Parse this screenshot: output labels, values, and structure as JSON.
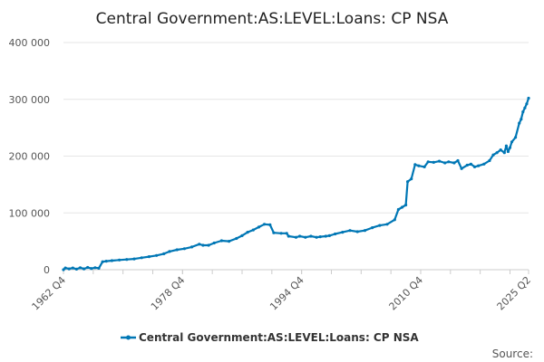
{
  "chart_data": {
    "type": "line",
    "title": "Central Government:AS:LEVEL:Loans: CP NSA",
    "series": [
      {
        "name": "Central Government:AS:LEVEL:Loans: CP NSA",
        "color": "#0077b5",
        "points": [
          [
            "1962 Q4",
            0
          ],
          [
            "1963 Q1",
            3000
          ],
          [
            "1963 Q3",
            1500
          ],
          [
            "1964 Q1",
            3000
          ],
          [
            "1964 Q3",
            1000
          ],
          [
            "1965 Q1",
            3500
          ],
          [
            "1965 Q3",
            1500
          ],
          [
            "1966 Q1",
            4000
          ],
          [
            "1966 Q3",
            2000
          ],
          [
            "1967 Q1",
            3500
          ],
          [
            "1967 Q3",
            2500
          ],
          [
            "1968 Q1",
            14000
          ],
          [
            "1968 Q3",
            15000
          ],
          [
            "1969 Q2",
            16000
          ],
          [
            "1970 Q2",
            17000
          ],
          [
            "1971 Q2",
            18000
          ],
          [
            "1972 Q2",
            19000
          ],
          [
            "1973 Q2",
            21000
          ],
          [
            "1974 Q2",
            23000
          ],
          [
            "1975 Q2",
            25000
          ],
          [
            "1976 Q2",
            28000
          ],
          [
            "1977 Q1",
            32000
          ],
          [
            "1978 Q1",
            35000
          ],
          [
            "1979 Q1",
            37000
          ],
          [
            "1980 Q1",
            40000
          ],
          [
            "1981 Q1",
            45000
          ],
          [
            "1981 Q3",
            43000
          ],
          [
            "1982 Q2",
            43000
          ],
          [
            "1983 Q1",
            47000
          ],
          [
            "1984 Q1",
            51000
          ],
          [
            "1985 Q1",
            50000
          ],
          [
            "1986 Q1",
            55000
          ],
          [
            "1986 Q4",
            60000
          ],
          [
            "1987 Q3",
            66000
          ],
          [
            "1988 Q2",
            70000
          ],
          [
            "1989 Q1",
            75000
          ],
          [
            "1989 Q4",
            80000
          ],
          [
            "1990 Q3",
            79000
          ],
          [
            "1991 Q1",
            65000
          ],
          [
            "1992 Q1",
            64000
          ],
          [
            "1992 Q4",
            64000
          ],
          [
            "1993 Q1",
            59000
          ],
          [
            "1994 Q1",
            57000
          ],
          [
            "1994 Q3",
            59000
          ],
          [
            "1995 Q2",
            57000
          ],
          [
            "1996 Q1",
            59000
          ],
          [
            "1996 Q4",
            57000
          ],
          [
            "1997 Q2",
            58000
          ],
          [
            "1998 Q1",
            59000
          ],
          [
            "1998 Q3",
            60000
          ],
          [
            "1999 Q2",
            63000
          ],
          [
            "2000 Q2",
            66000
          ],
          [
            "2001 Q2",
            69000
          ],
          [
            "2002 Q2",
            67000
          ],
          [
            "2003 Q2",
            69000
          ],
          [
            "2004 Q2",
            74000
          ],
          [
            "2005 Q2",
            78000
          ],
          [
            "2006 Q2",
            80000
          ],
          [
            "2007 Q2",
            88000
          ],
          [
            "2007 Q4",
            106000
          ],
          [
            "2008 Q2",
            110000
          ],
          [
            "2008 Q4",
            114000
          ],
          [
            "2009 Q1",
            155000
          ],
          [
            "2009 Q3",
            160000
          ],
          [
            "2010 Q1",
            185000
          ],
          [
            "2010 Q3",
            183000
          ],
          [
            "2011 Q2",
            181000
          ],
          [
            "2011 Q4",
            190000
          ],
          [
            "2012 Q3",
            189000
          ],
          [
            "2013 Q2",
            191000
          ],
          [
            "2014 Q1",
            188000
          ],
          [
            "2014 Q3",
            190000
          ],
          [
            "2015 Q2",
            188000
          ],
          [
            "2015 Q4",
            192000
          ],
          [
            "2016 Q2",
            178000
          ],
          [
            "2017 Q1",
            184000
          ],
          [
            "2017 Q3",
            186000
          ],
          [
            "2018 Q1",
            181000
          ],
          [
            "2018 Q3",
            183000
          ],
          [
            "2019 Q2",
            186000
          ],
          [
            "2020 Q1",
            192000
          ],
          [
            "2020 Q3",
            202000
          ],
          [
            "2021 Q1",
            206000
          ],
          [
            "2021 Q3",
            211000
          ],
          [
            "2022 Q1",
            206000
          ],
          [
            "2022 Q2",
            218000
          ],
          [
            "2022 Q3",
            208000
          ],
          [
            "2022 Q4",
            215000
          ],
          [
            "2023 Q1",
            225000
          ],
          [
            "2023 Q3",
            233000
          ],
          [
            "2024 Q1",
            258000
          ],
          [
            "2024 Q2",
            265000
          ],
          [
            "2024 Q3",
            278000
          ],
          [
            "2024 Q4",
            285000
          ],
          [
            "2025 Q1",
            292000
          ],
          [
            "2025 Q2",
            302000
          ]
        ]
      }
    ],
    "x_tick_labels": [
      "1962 Q4",
      "1978 Q4",
      "1994 Q4",
      "2010 Q4",
      "2025 Q2"
    ],
    "y_tick_labels": [
      "0",
      "100 000",
      "200 000",
      "300 000",
      "400 000"
    ],
    "ylim": [
      0,
      400000
    ],
    "grid": "horizontal",
    "legend_position": "bottom-center",
    "source_label": "Source:"
  }
}
